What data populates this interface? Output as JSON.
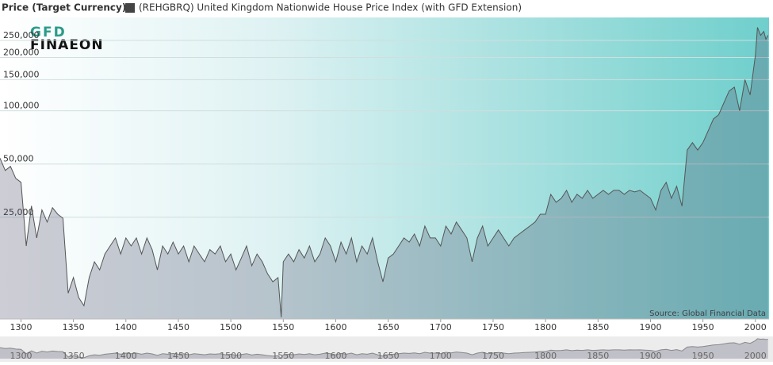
{
  "chart_data": {
    "type": "area",
    "title": "Price (Target Currency)",
    "logo": [
      "GFD",
      "FINAEON"
    ],
    "source": "Source: Global Financial Data",
    "log_scale": true,
    "grid": true,
    "xlim": [
      1280,
      2013
    ],
    "ylim": [
      6650,
      337000
    ],
    "xticks": [
      1300,
      1350,
      1400,
      1450,
      1500,
      1550,
      1600,
      1650,
      1700,
      1750,
      1800,
      1850,
      1900,
      1950,
      2000
    ],
    "yticks": [
      {
        "value": 25000,
        "label": "25,000"
      },
      {
        "value": 50000,
        "label": "50,000"
      },
      {
        "value": 100000,
        "label": "100,000"
      },
      {
        "value": 150000,
        "label": "150,000"
      },
      {
        "value": 200000,
        "label": "200,000"
      },
      {
        "value": 250000,
        "label": "250,000"
      }
    ],
    "x": [
      1280,
      1285,
      1290,
      1295,
      1300,
      1305,
      1310,
      1315,
      1320,
      1325,
      1330,
      1335,
      1340,
      1345,
      1350,
      1355,
      1360,
      1365,
      1370,
      1375,
      1380,
      1385,
      1390,
      1395,
      1400,
      1405,
      1410,
      1415,
      1420,
      1425,
      1430,
      1435,
      1440,
      1445,
      1450,
      1455,
      1460,
      1465,
      1470,
      1475,
      1480,
      1485,
      1490,
      1495,
      1500,
      1505,
      1510,
      1515,
      1520,
      1525,
      1530,
      1535,
      1540,
      1545,
      1548,
      1550,
      1555,
      1560,
      1565,
      1570,
      1575,
      1580,
      1585,
      1590,
      1595,
      1600,
      1605,
      1610,
      1615,
      1620,
      1625,
      1630,
      1635,
      1640,
      1645,
      1650,
      1655,
      1660,
      1665,
      1670,
      1675,
      1680,
      1685,
      1690,
      1695,
      1700,
      1705,
      1710,
      1715,
      1720,
      1725,
      1730,
      1735,
      1740,
      1745,
      1750,
      1755,
      1760,
      1765,
      1770,
      1775,
      1780,
      1785,
      1790,
      1795,
      1800,
      1805,
      1810,
      1815,
      1820,
      1825,
      1830,
      1835,
      1840,
      1845,
      1850,
      1855,
      1860,
      1865,
      1870,
      1875,
      1880,
      1885,
      1890,
      1895,
      1900,
      1905,
      1910,
      1915,
      1920,
      1925,
      1930,
      1935,
      1940,
      1945,
      1950,
      1955,
      1960,
      1965,
      1970,
      1975,
      1980,
      1985,
      1990,
      1995,
      2000,
      2002,
      2005,
      2008,
      2010,
      2012
    ],
    "series": [
      {
        "name": "(REHGBRQ) United Kingdom Nationwide House Price Index (with GFD Extension)",
        "color": "#555555",
        "values": [
          54000,
          46000,
          48500,
          41500,
          39400,
          17200,
          29000,
          19100,
          27500,
          23500,
          28300,
          26000,
          24700,
          9300,
          11400,
          8800,
          7900,
          11400,
          14000,
          12600,
          15500,
          17200,
          19100,
          15500,
          19100,
          17200,
          19100,
          15500,
          19100,
          16400,
          12600,
          17200,
          15500,
          18100,
          15500,
          17200,
          14000,
          17200,
          15500,
          14000,
          16400,
          15500,
          17200,
          14000,
          15500,
          12600,
          14700,
          17200,
          13300,
          15500,
          14000,
          12000,
          10800,
          11400,
          6800,
          14000,
          15500,
          14000,
          16400,
          14700,
          17200,
          14000,
          15500,
          19100,
          17200,
          14000,
          18100,
          15500,
          19100,
          14000,
          17200,
          15500,
          19100,
          14000,
          10800,
          14700,
          15500,
          17200,
          19100,
          18100,
          20100,
          17200,
          22300,
          19100,
          19100,
          17200,
          22300,
          20100,
          23500,
          21200,
          19100,
          14000,
          19100,
          22300,
          17200,
          19100,
          21200,
          19100,
          17200,
          19100,
          20100,
          21200,
          22300,
          23500,
          26000,
          26000,
          33700,
          30400,
          32000,
          35500,
          30400,
          33700,
          32000,
          35500,
          32000,
          33700,
          35500,
          33700,
          35500,
          35500,
          33700,
          35500,
          34800,
          35500,
          33700,
          32000,
          27500,
          35500,
          39400,
          32000,
          37400,
          28900,
          60000,
          66000,
          60000,
          66000,
          77000,
          90000,
          95000,
          111000,
          129500,
          136000,
          100000,
          150000,
          123000,
          206000,
          296000,
          267000,
          281000,
          254000,
          267000
        ]
      }
    ]
  }
}
